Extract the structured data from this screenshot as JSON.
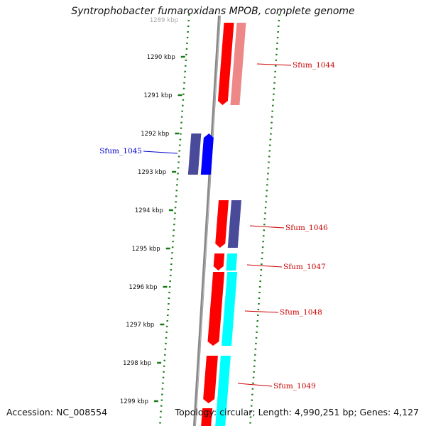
{
  "title": "Syntrophobacter fumaroxidans MPOB, complete genome",
  "footer": {
    "accession": "Accession: NC_008554",
    "topology": "Topology: circular; Length: 4,990,251 bp; Genes: 4,127"
  },
  "scale": {
    "top_partial_label": "1289 kbp",
    "labels": [
      "1290 kbp",
      "1291 kbp",
      "1292 kbp",
      "1293 kbp",
      "1294 kbp",
      "1295 kbp",
      "1296 kbp",
      "1297 kbp",
      "1298 kbp",
      "1299 kbp"
    ]
  },
  "colors": {
    "red": "#ff0000",
    "red_light": "#ee8888",
    "blue": "#0000ff",
    "navy": "#4a4a9a",
    "cyan": "#00ffff",
    "green_dots": "#1a7a1a",
    "genome_line": "#888888",
    "label_red": "#cc0000",
    "label_blue": "#0000cc"
  },
  "gene_labels": [
    {
      "name": "Sfum_1044",
      "color": "red"
    },
    {
      "name": "Sfum_1045",
      "color": "blue"
    },
    {
      "name": "Sfum_1046",
      "color": "red"
    },
    {
      "name": "Sfum_1047",
      "color": "red"
    },
    {
      "name": "Sfum_1048",
      "color": "red"
    },
    {
      "name": "Sfum_1049",
      "color": "red"
    }
  ]
}
